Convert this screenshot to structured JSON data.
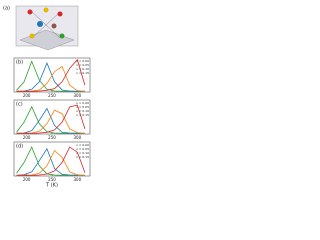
{
  "diagram": {
    "label": "(a)"
  },
  "chart_data": [
    {
      "type": "line",
      "panel_label": "(b)",
      "x": [
        180,
        195,
        210,
        225,
        240,
        255,
        270,
        285,
        300,
        315
      ],
      "xlim": [
        175,
        325
      ],
      "xticks": [
        200,
        250,
        300
      ],
      "ylim": [
        0,
        1
      ],
      "series": [
        {
          "name": "x = 0.00",
          "color": "#2ca02c",
          "values": [
            0.05,
            0.3,
            0.9,
            0.35,
            0.08,
            0.03,
            0.02,
            0.02,
            0.02,
            0.02
          ]
        },
        {
          "name": "x = 0.05",
          "color": "#1f77b4",
          "values": [
            0.02,
            0.03,
            0.08,
            0.3,
            0.85,
            0.3,
            0.06,
            0.03,
            0.02,
            0.02
          ]
        },
        {
          "name": "x = 0.10",
          "color": "#ff7f0e",
          "values": [
            0.02,
            0.02,
            0.03,
            0.06,
            0.25,
            0.6,
            0.75,
            0.2,
            0.04,
            0.02
          ]
        },
        {
          "name": "x = 0.15",
          "color": "#d62728",
          "values": [
            0.02,
            0.02,
            0.02,
            0.03,
            0.05,
            0.1,
            0.3,
            0.7,
            0.95,
            0.2
          ]
        }
      ]
    },
    {
      "type": "line",
      "panel_label": "(c)",
      "x": [
        180,
        195,
        210,
        225,
        240,
        255,
        270,
        285,
        300,
        315
      ],
      "xlim": [
        175,
        325
      ],
      "xticks": [
        200,
        250,
        300
      ],
      "ylim": [
        0,
        1
      ],
      "series": [
        {
          "name": "x = 0.00",
          "color": "#2ca02c",
          "values": [
            0.05,
            0.35,
            0.8,
            0.3,
            0.07,
            0.03,
            0.02,
            0.02,
            0.02,
            0.02
          ]
        },
        {
          "name": "x = 0.05",
          "color": "#1f77b4",
          "values": [
            0.02,
            0.03,
            0.1,
            0.4,
            0.75,
            0.25,
            0.05,
            0.03,
            0.02,
            0.02
          ]
        },
        {
          "name": "x = 0.10",
          "color": "#ff7f0e",
          "values": [
            0.02,
            0.02,
            0.03,
            0.08,
            0.3,
            0.7,
            0.6,
            0.15,
            0.04,
            0.02
          ]
        },
        {
          "name": "x = 0.15",
          "color": "#d62728",
          "values": [
            0.02,
            0.02,
            0.02,
            0.03,
            0.05,
            0.12,
            0.35,
            0.8,
            0.85,
            0.15
          ]
        }
      ]
    },
    {
      "type": "line",
      "panel_label": "(d)",
      "x_label": "T (K)",
      "x": [
        180,
        195,
        210,
        225,
        240,
        255,
        270,
        285,
        300,
        315
      ],
      "xlim": [
        175,
        325
      ],
      "xticks": [
        200,
        250,
        300
      ],
      "ylim": [
        0,
        1
      ],
      "series": [
        {
          "name": "x = 0.00",
          "color": "#2ca02c",
          "values": [
            0.08,
            0.4,
            0.85,
            0.3,
            0.06,
            0.03,
            0.02,
            0.02,
            0.02,
            0.02
          ]
        },
        {
          "name": "x = 0.05",
          "color": "#1f77b4",
          "values": [
            0.02,
            0.04,
            0.12,
            0.45,
            0.8,
            0.22,
            0.05,
            0.03,
            0.02,
            0.02
          ]
        },
        {
          "name": "x = 0.10",
          "color": "#ff7f0e",
          "values": [
            0.02,
            0.02,
            0.03,
            0.08,
            0.3,
            0.75,
            0.55,
            0.12,
            0.03,
            0.02
          ]
        },
        {
          "name": "x = 0.15",
          "color": "#d62728",
          "values": [
            0.02,
            0.02,
            0.02,
            0.03,
            0.06,
            0.15,
            0.4,
            0.85,
            0.7,
            0.1
          ]
        }
      ]
    }
  ]
}
